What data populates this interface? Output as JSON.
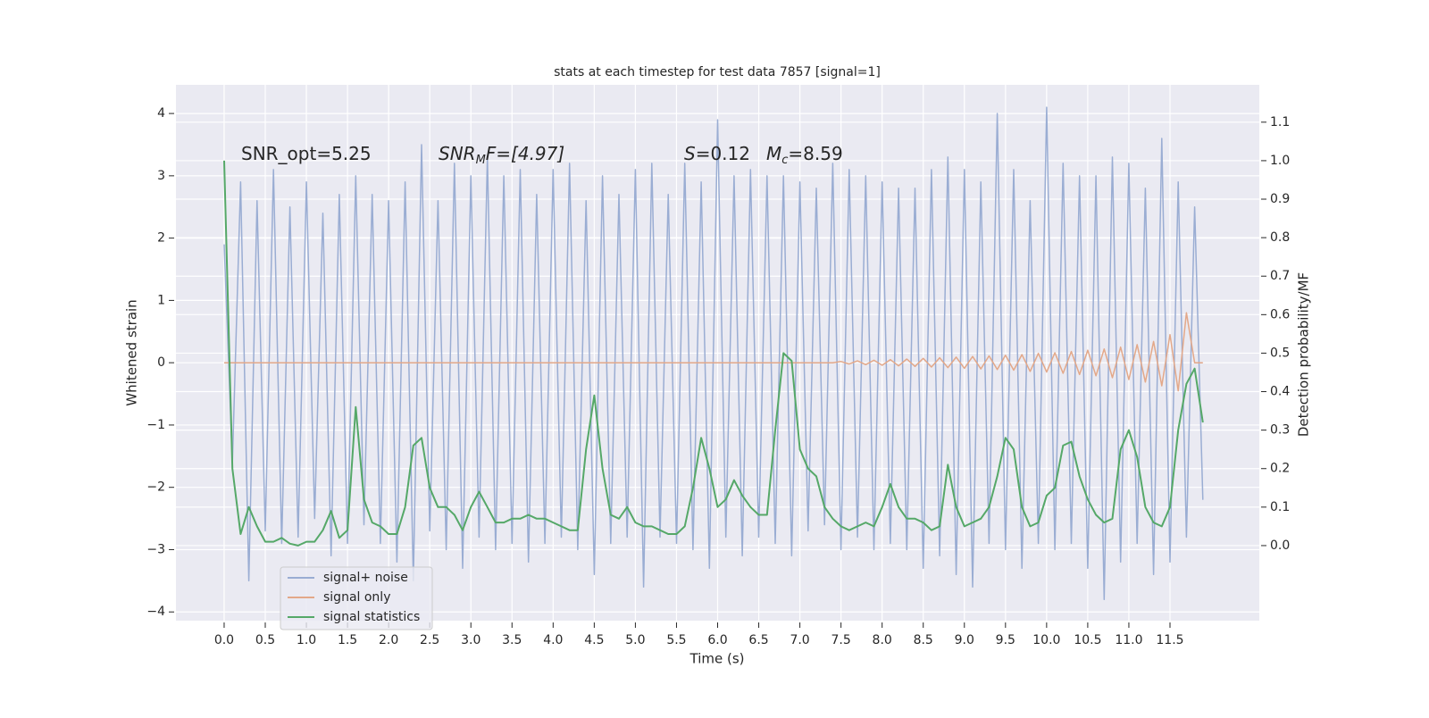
{
  "chart_data": {
    "type": "line",
    "title": "stats at each timestep for test data 7857 [signal=1]",
    "x_label": "Time (s)",
    "y_label": "Whitened strain",
    "y2_label": "Detection probability/MF",
    "annotations": [
      [
        "SNR_opt=5.25"
      ],
      [
        "SNR",
        "M",
        "F=[4.97]"
      ],
      [
        "S",
        "=0.12"
      ],
      [
        "M",
        "c",
        "=8.59"
      ]
    ],
    "grid": true,
    "legend": "lower left",
    "xlim": [
      -0.586,
      12.586
    ],
    "ylim": [
      -4.14,
      4.46
    ],
    "y2lim": [
      -0.195,
      1.197
    ],
    "xticks": [
      {
        "value": 0,
        "label": "0.0"
      },
      0.5,
      {
        "value": 1,
        "label": "1.0"
      },
      1.5,
      {
        "value": 2,
        "label": "2.0"
      },
      2.5,
      {
        "value": 3,
        "label": "3.0"
      },
      3.5,
      {
        "value": 4,
        "label": "4.0"
      },
      4.5,
      {
        "value": 5,
        "label": "5.0"
      },
      5.5,
      {
        "value": 6,
        "label": "6.0"
      },
      6.5,
      {
        "value": 7,
        "label": "7.0"
      },
      7.5,
      {
        "value": 8,
        "label": "8.0"
      },
      8.5,
      {
        "value": 9,
        "label": "9.0"
      },
      9.5,
      {
        "value": 10,
        "label": "10.0"
      },
      10.5,
      {
        "value": 11,
        "label": "11.0"
      },
      11.5
    ],
    "yticks": [
      {
        "value": -4,
        "label": "−4"
      },
      {
        "value": -3,
        "label": "−3"
      },
      {
        "value": -2,
        "label": "−2"
      },
      {
        "value": -1,
        "label": "−1"
      },
      0,
      1,
      2,
      3,
      4
    ],
    "y2ticks": [
      {
        "value": 0,
        "label": "0.0"
      },
      0.1,
      0.2,
      0.3,
      0.4,
      0.5,
      0.6,
      0.7,
      0.8,
      0.9,
      {
        "value": 1,
        "label": "1.0"
      },
      1.1
    ],
    "x": [
      0,
      0.1,
      0.2,
      0.3,
      0.4,
      0.5,
      0.6,
      0.7,
      0.8,
      0.9,
      1,
      1.1,
      1.2,
      1.3,
      1.4,
      1.5,
      1.6,
      1.7,
      1.8,
      1.9,
      2,
      2.1,
      2.2,
      2.3,
      2.4,
      2.5,
      2.6,
      2.7,
      2.8,
      2.9,
      3,
      3.1,
      3.2,
      3.3,
      3.4,
      3.5,
      3.6,
      3.7,
      3.8,
      3.9,
      4,
      4.1,
      4.2,
      4.3,
      4.4,
      4.5,
      4.6,
      4.7,
      4.8,
      4.9,
      5,
      5.1,
      5.2,
      5.3,
      5.4,
      5.5,
      5.6,
      5.7,
      5.8,
      5.9,
      6,
      6.1,
      6.2,
      6.3,
      6.4,
      6.5,
      6.6,
      6.7,
      6.8,
      6.9,
      7,
      7.1,
      7.2,
      7.3,
      7.4,
      7.5,
      7.6,
      7.7,
      7.8,
      7.9,
      8,
      8.1,
      8.2,
      8.3,
      8.4,
      8.5,
      8.6,
      8.7,
      8.8,
      8.9,
      9,
      9.1,
      9.2,
      9.3,
      9.4,
      9.5,
      9.6,
      9.7,
      9.8,
      9.9,
      10,
      10.1,
      10.2,
      10.3,
      10.4,
      10.5,
      10.6,
      10.7,
      10.8,
      10.9,
      11,
      11.1,
      11.2,
      11.3,
      11.4,
      11.5,
      11.6,
      11.7,
      11.8,
      11.9
    ],
    "series": [
      {
        "name": "signal+ noise",
        "color": "#9aadd3",
        "values": [
          1.9,
          -1.6,
          2.9,
          -3.5,
          2.6,
          -2.7,
          3.1,
          -2.9,
          2.5,
          -2.8,
          2.9,
          -2.5,
          2.4,
          -3.1,
          2.7,
          -2.9,
          3.0,
          -2.6,
          2.7,
          -2.9,
          2.6,
          -3.2,
          2.9,
          -3.5,
          3.5,
          -2.7,
          2.6,
          -3.0,
          3.2,
          -3.3,
          3.0,
          -2.8,
          3.3,
          -3.0,
          3.0,
          -2.9,
          3.1,
          -3.2,
          2.7,
          -2.9,
          3.1,
          -2.8,
          3.2,
          -3.0,
          2.6,
          -3.4,
          3.0,
          -2.9,
          2.7,
          -2.8,
          3.1,
          -3.6,
          3.2,
          -2.8,
          2.7,
          -2.9,
          3.2,
          -3.0,
          2.9,
          -3.3,
          3.9,
          -2.8,
          3.0,
          -3.1,
          3.1,
          -2.8,
          3.0,
          -2.9,
          3.0,
          -3.1,
          2.9,
          -2.7,
          2.8,
          -2.6,
          3.2,
          -3.0,
          3.1,
          -2.8,
          3.0,
          -3.0,
          2.9,
          -2.9,
          2.8,
          -3.0,
          2.8,
          -3.3,
          3.1,
          -3.1,
          3.3,
          -3.4,
          3.1,
          -3.6,
          2.9,
          -2.9,
          4.0,
          -3.0,
          3.1,
          -3.3,
          2.6,
          -2.9,
          4.1,
          -3.0,
          3.2,
          -2.9,
          3.0,
          -3.3,
          3.0,
          -3.8,
          3.3,
          -3.2,
          3.2,
          -2.9,
          2.8,
          -3.4,
          3.6,
          -3.2,
          2.9,
          -2.8,
          2.5,
          -2.2
        ]
      },
      {
        "name": "signal only",
        "color": "#e3a889",
        "values": [
          0,
          0,
          0,
          0,
          0,
          0,
          0,
          0,
          0,
          0,
          0,
          0,
          0,
          0,
          0,
          0,
          0,
          0,
          0,
          0,
          0,
          0,
          0,
          0,
          0,
          0,
          0,
          0,
          0,
          0,
          0,
          0,
          0,
          0,
          0,
          0,
          0,
          0,
          0,
          0,
          0,
          0,
          0,
          0,
          0,
          0,
          0,
          0,
          0,
          0,
          0,
          0,
          0,
          0,
          0,
          0,
          0,
          0,
          0,
          0,
          0,
          0,
          0,
          0,
          0,
          0,
          0,
          0,
          0,
          0,
          0,
          0,
          0,
          0,
          0,
          0.02,
          -0.02,
          0.03,
          -0.03,
          0.04,
          -0.04,
          0.05,
          -0.05,
          0.06,
          -0.06,
          0.07,
          -0.07,
          0.08,
          -0.08,
          0.09,
          -0.09,
          0.1,
          -0.1,
          0.11,
          -0.11,
          0.12,
          -0.12,
          0.13,
          -0.14,
          0.15,
          -0.15,
          0.16,
          -0.17,
          0.18,
          -0.19,
          0.2,
          -0.21,
          0.22,
          -0.24,
          0.25,
          -0.27,
          0.29,
          -0.31,
          0.34,
          -0.37,
          0.45,
          -0.45,
          0.8,
          0,
          0
        ]
      },
      {
        "name": "signal statistics",
        "color": "#55a868",
        "axis": "y2",
        "values": [
          1.0,
          0.2,
          0.03,
          0.1,
          0.05,
          0.01,
          0.01,
          0.02,
          0.005,
          0.0,
          0.01,
          0.01,
          0.04,
          0.09,
          0.02,
          0.04,
          0.36,
          0.12,
          0.06,
          0.05,
          0.03,
          0.03,
          0.1,
          0.26,
          0.28,
          0.15,
          0.1,
          0.1,
          0.08,
          0.04,
          0.1,
          0.14,
          0.1,
          0.06,
          0.06,
          0.07,
          0.07,
          0.08,
          0.07,
          0.07,
          0.06,
          0.05,
          0.04,
          0.04,
          0.25,
          0.39,
          0.2,
          0.08,
          0.07,
          0.1,
          0.06,
          0.05,
          0.05,
          0.04,
          0.03,
          0.03,
          0.05,
          0.15,
          0.28,
          0.2,
          0.1,
          0.12,
          0.17,
          0.13,
          0.1,
          0.08,
          0.08,
          0.3,
          0.5,
          0.48,
          0.25,
          0.2,
          0.18,
          0.1,
          0.07,
          0.05,
          0.04,
          0.05,
          0.06,
          0.05,
          0.1,
          0.16,
          0.1,
          0.07,
          0.07,
          0.06,
          0.04,
          0.05,
          0.21,
          0.1,
          0.05,
          0.06,
          0.07,
          0.1,
          0.18,
          0.28,
          0.25,
          0.1,
          0.05,
          0.06,
          0.13,
          0.15,
          0.26,
          0.27,
          0.18,
          0.12,
          0.08,
          0.06,
          0.07,
          0.25,
          0.3,
          0.23,
          0.1,
          0.06,
          0.05,
          0.1,
          0.3,
          0.42,
          0.46,
          0.32
        ]
      }
    ]
  }
}
